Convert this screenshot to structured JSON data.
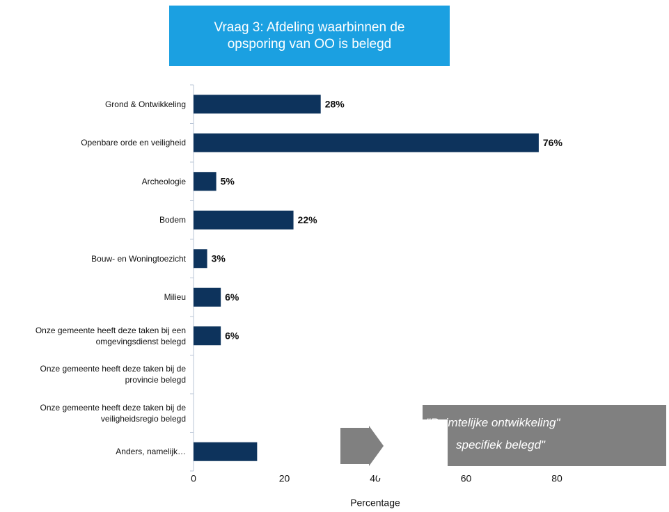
{
  "chart_data": {
    "type": "barh",
    "title": "Vraag 3: Afdeling waarbinnen de opsporing van OO is belegd",
    "categories": [
      "Grond & Ontwikkeling",
      "Openbare orde en veiligheid",
      "Archeologie",
      "Bodem",
      "Bouw- en Woningtoezicht",
      "Milieu",
      "Onze gemeente heeft deze taken bij een omgevingsdienst belegd",
      "Onze gemeente heeft deze taken bij de provincie belegd",
      "Onze gemeente heeft deze taken bij de veiligheidsregio belegd",
      "Anders, namelijk…"
    ],
    "values": [
      28,
      76,
      5,
      22,
      3,
      6,
      6,
      0,
      0,
      14
    ],
    "value_labels": [
      "28%",
      "76%",
      "5%",
      "22%",
      "3%",
      "6%",
      "6%",
      null,
      null,
      null
    ],
    "color": "#0d335c",
    "xlim": [
      0,
      80
    ],
    "xticks": [
      0,
      20,
      40,
      60,
      80
    ],
    "xlabel": "Percentage",
    "annotations": [
      "\"Ruimtelijke ontwikkeling\"",
      "specifiek belegd\""
    ],
    "grid": false
  }
}
